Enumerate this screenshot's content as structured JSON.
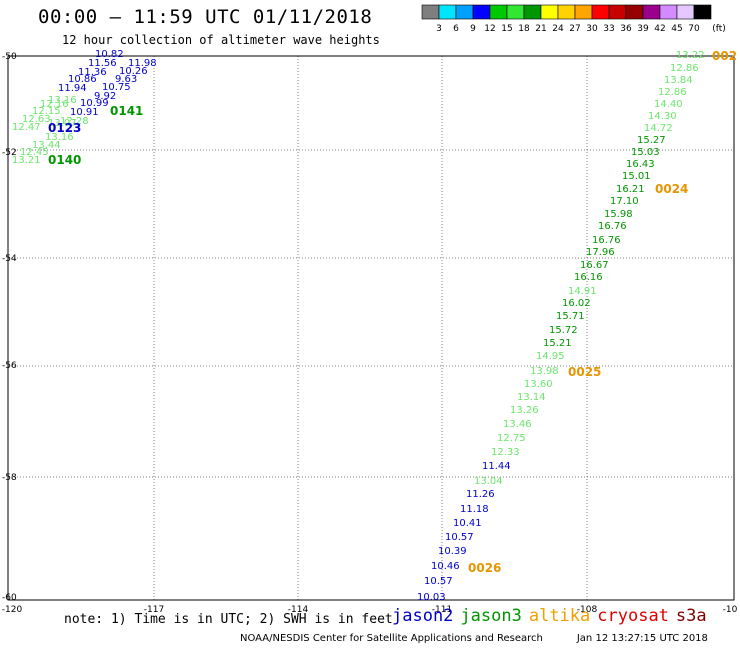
{
  "title": "00:00 – 11:59 UTC 01/11/2018",
  "subtitle": "12 hour collection of altimeter wave heights",
  "colorbar": {
    "unit": "(ft)",
    "labels": [
      "3",
      "6",
      "9",
      "12",
      "15",
      "18",
      "21",
      "24",
      "27",
      "30",
      "33",
      "36",
      "39",
      "42",
      "45",
      "70"
    ],
    "colors": [
      "#7f7f7f",
      "#00e5ff",
      "#00a0ff",
      "#0000ff",
      "#00c800",
      "#32e632",
      "#009600",
      "#ffff00",
      "#ffd200",
      "#ffa500",
      "#ff0000",
      "#c80000",
      "#960000",
      "#9b008c",
      "#d28cff",
      "#e6c8ff",
      "#000000"
    ]
  },
  "axes": {
    "lon_labels": [
      "-120",
      "-117",
      "-114",
      "-111",
      "-108",
      "-10"
    ],
    "lat_labels": [
      "-50",
      "-52",
      "-54",
      "-56",
      "-58",
      "-60"
    ]
  },
  "map_data": {
    "left_track": [
      {
        "text": "10.82",
        "color": "#0000cc"
      },
      {
        "text": "11.56",
        "color": "#0000cc"
      },
      {
        "text": "11.98",
        "color": "#0000cc"
      },
      {
        "text": "11.36",
        "color": "#0000cc"
      },
      {
        "text": "10.26",
        "color": "#0000cc"
      },
      {
        "text": "10.86",
        "color": "#0000cc"
      },
      {
        "text": "9.63",
        "color": "#0000cc"
      },
      {
        "text": "11.94",
        "color": "#0000cc"
      },
      {
        "text": "10.75",
        "color": "#0000cc"
      },
      {
        "text": "9.92",
        "color": "#0000cc"
      },
      {
        "text": "13.16",
        "color": "#6be66b"
      },
      {
        "text": "10.99",
        "color": "#0000cc"
      },
      {
        "text": "12.16",
        "color": "#6be66b"
      },
      {
        "text": "10.91",
        "color": "#0000cc"
      },
      {
        "text": "12.15",
        "color": "#6be66b"
      },
      {
        "text": "13.07",
        "color": "#6be66b"
      },
      {
        "text": "12.63",
        "color": "#6be66b"
      },
      {
        "text": "12.28",
        "color": "#6be66b"
      },
      {
        "text": "12.47",
        "color": "#6be66b"
      },
      {
        "text": "13.16",
        "color": "#6be66b"
      },
      {
        "text": "13.44",
        "color": "#6be66b"
      },
      {
        "text": "12.45",
        "color": "#6be66b"
      },
      {
        "text": "13.21",
        "color": "#6be66b"
      }
    ],
    "left_pass_labels": [
      {
        "text": "0141",
        "color": "#009600"
      },
      {
        "text": "0123",
        "color": "#0000cc"
      },
      {
        "text": "0140",
        "color": "#009600"
      }
    ],
    "right_track": [
      {
        "text": "13.22",
        "color": "#6be66b"
      },
      {
        "text": "12.86",
        "color": "#6be66b"
      },
      {
        "text": "13.84",
        "color": "#6be66b"
      },
      {
        "text": "12.86",
        "color": "#6be66b"
      },
      {
        "text": "14.40",
        "color": "#6be66b"
      },
      {
        "text": "14.30",
        "color": "#6be66b"
      },
      {
        "text": "14.72",
        "color": "#6be66b"
      },
      {
        "text": "15.27",
        "color": "#009600"
      },
      {
        "text": "15.03",
        "color": "#009600"
      },
      {
        "text": "16.43",
        "color": "#009600"
      },
      {
        "text": "15.01",
        "color": "#009600"
      },
      {
        "text": "16.21",
        "color": "#009600"
      },
      {
        "text": "17.10",
        "color": "#009600"
      },
      {
        "text": "15.98",
        "color": "#009600"
      },
      {
        "text": "16.76",
        "color": "#009600"
      },
      {
        "text": "16.76",
        "color": "#009600"
      },
      {
        "text": "17.96",
        "color": "#009600"
      },
      {
        "text": "16.67",
        "color": "#009600"
      },
      {
        "text": "16.16",
        "color": "#009600"
      },
      {
        "text": "14.91",
        "color": "#6be66b"
      },
      {
        "text": "16.02",
        "color": "#009600"
      },
      {
        "text": "15.71",
        "color": "#009600"
      },
      {
        "text": "15.72",
        "color": "#009600"
      },
      {
        "text": "15.21",
        "color": "#009600"
      },
      {
        "text": "14.95",
        "color": "#6be66b"
      },
      {
        "text": "13.98",
        "color": "#6be66b"
      },
      {
        "text": "13.60",
        "color": "#6be66b"
      },
      {
        "text": "13.14",
        "color": "#6be66b"
      },
      {
        "text": "13.26",
        "color": "#6be66b"
      },
      {
        "text": "13.46",
        "color": "#6be66b"
      },
      {
        "text": "12.75",
        "color": "#6be66b"
      },
      {
        "text": "12.33",
        "color": "#6be66b"
      },
      {
        "text": "11.44",
        "color": "#0000cc"
      },
      {
        "text": "13.04",
        "color": "#6be66b"
      },
      {
        "text": "11.26",
        "color": "#0000cc"
      },
      {
        "text": "11.18",
        "color": "#0000cc"
      },
      {
        "text": "10.41",
        "color": "#0000cc"
      },
      {
        "text": "10.57",
        "color": "#0000cc"
      },
      {
        "text": "10.39",
        "color": "#0000cc"
      },
      {
        "text": "10.46",
        "color": "#0000cc"
      },
      {
        "text": "10.57",
        "color": "#0000cc"
      },
      {
        "text": "10.03",
        "color": "#0000cc"
      }
    ],
    "right_pass_labels": [
      {
        "text": "002",
        "color": "#e69500"
      },
      {
        "text": "0024",
        "color": "#e69500"
      },
      {
        "text": "0025",
        "color": "#e69500"
      },
      {
        "text": "0026",
        "color": "#e69500"
      }
    ]
  },
  "note": "note: 1) Time is in UTC; 2) SWH is in feet",
  "legend": [
    {
      "text": "jason2",
      "color": "#0000cc"
    },
    {
      "text": "jason3",
      "color": "#009600"
    },
    {
      "text": "altika",
      "color": "#f0a000"
    },
    {
      "text": "cryosat",
      "color": "#dd0000"
    },
    {
      "text": "s3a",
      "color": "#800000"
    }
  ],
  "footer": {
    "center": "NOAA/NESDIS Center for Satellite Applications and Research",
    "timestamp": "Jan 12 13:27:15 UTC 2018"
  }
}
